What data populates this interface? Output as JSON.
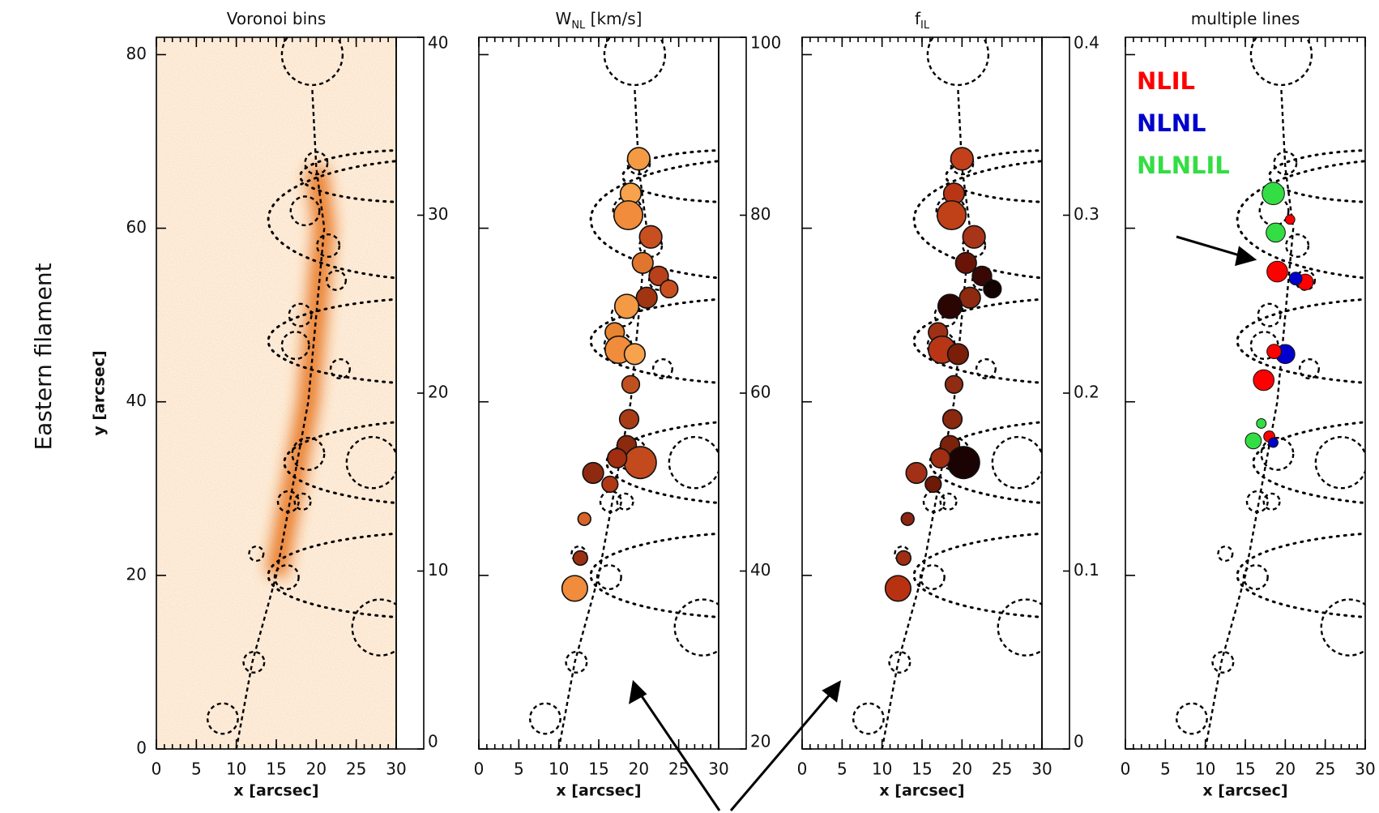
{
  "side_label": "Eastern filament",
  "xlabel": "x [arcsec]",
  "ylabel": "y [arcsec]",
  "xlim": [
    0,
    30
  ],
  "xticks": [
    0,
    5,
    10,
    15,
    20,
    25,
    30
  ],
  "ylim": [
    0,
    82
  ],
  "yticks": [
    0,
    20,
    40,
    60,
    80
  ],
  "colormap": [
    "#ffffff",
    "#f7a24c",
    "#d2541e",
    "#7a1a0a",
    "#000000"
  ],
  "chart_data": [
    {
      "type": "map",
      "title": [
        "Voronoi bins"
      ],
      "clim": [
        0,
        40
      ],
      "cticks": [
        0,
        10,
        20,
        30,
        40
      ]
    },
    {
      "type": "map",
      "title": [
        "W",
        "NL",
        " [km/s]"
      ],
      "clim": [
        20,
        100
      ],
      "cticks": [
        20,
        40,
        60,
        80,
        100
      ]
    },
    {
      "type": "map",
      "title": [
        "f",
        "IL"
      ],
      "clim": [
        0,
        0.4
      ],
      "cticks": [
        0,
        0.1,
        0.2,
        0.3,
        0.4
      ]
    },
    {
      "type": "map",
      "title": [
        "multiple lines"
      ],
      "legend": [
        {
          "name": "NLIL",
          "color": "#ff0000"
        },
        {
          "name": "NLNL",
          "color": "#0000cc"
        },
        {
          "name": "NLNLIL",
          "color": "#33dd44"
        }
      ]
    }
  ]
}
